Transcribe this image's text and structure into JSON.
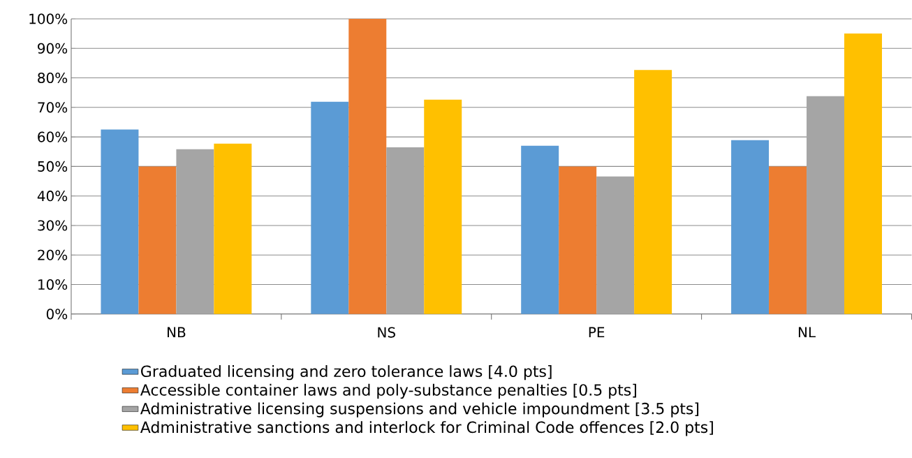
{
  "chart_data": {
    "type": "bar",
    "categories": [
      "NB",
      "NS",
      "PE",
      "NL"
    ],
    "series": [
      {
        "name": "Graduated licensing and zero tolerance laws [4.0 pts]",
        "color": "#5b9bd5",
        "values": [
          62.5,
          71.9,
          57.0,
          58.9
        ]
      },
      {
        "name": "Accessible container laws and poly-substance penalties [0.5 pts]",
        "color": "#ed7d31",
        "values": [
          50,
          100,
          50,
          50
        ]
      },
      {
        "name": "Administrative licensing suspensions and vehicle impoundment [3.5 pts]",
        "color": "#a5a5a5",
        "values": [
          55.8,
          56.5,
          46.6,
          73.8
        ]
      },
      {
        "name": "Administrative sanctions and interlock for Criminal Code offences [2.0 pts]",
        "color": "#ffc000",
        "values": [
          57.7,
          72.6,
          82.7,
          95.0
        ]
      }
    ],
    "ylim": [
      0,
      100
    ],
    "yticks": [
      {
        "value": 0,
        "label": "0%"
      },
      {
        "value": 10,
        "label": "10%"
      },
      {
        "value": 20,
        "label": "20%"
      },
      {
        "value": 30,
        "label": "30%"
      },
      {
        "value": 40,
        "label": "40%"
      },
      {
        "value": 50,
        "label": "50%"
      },
      {
        "value": 60,
        "label": "60%"
      },
      {
        "value": 70,
        "label": "70%"
      },
      {
        "value": 80,
        "label": "80%"
      },
      {
        "value": 90,
        "label": "90%"
      },
      {
        "value": 100,
        "label": "100%"
      }
    ],
    "grid": "y",
    "legend": "bottom"
  }
}
